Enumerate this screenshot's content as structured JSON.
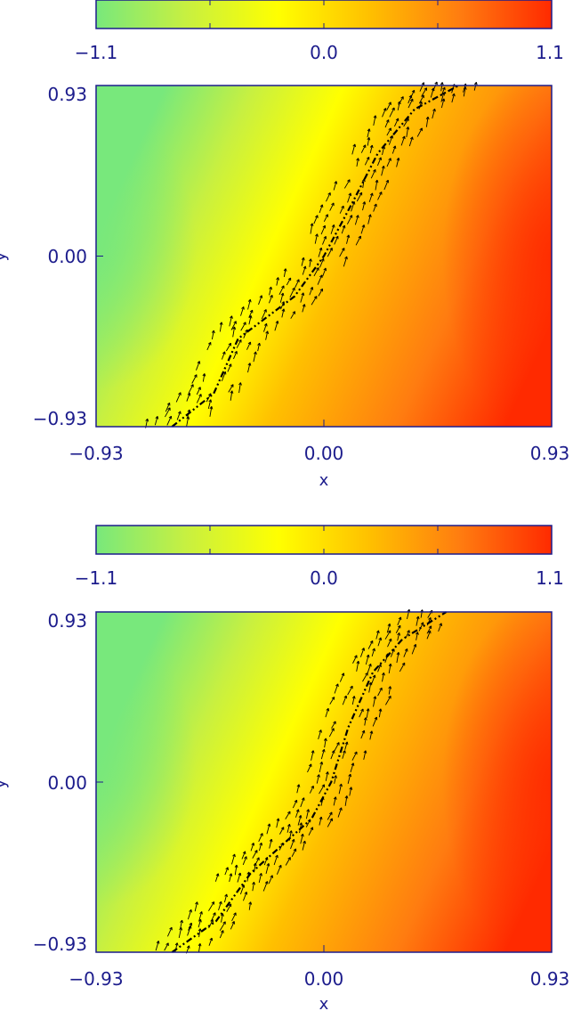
{
  "chart_data": [
    {
      "type": "heatmap",
      "title": "",
      "xlabel": "x",
      "ylabel": "y",
      "xlim": [
        -0.93,
        0.93
      ],
      "ylim": [
        -0.93,
        0.93
      ],
      "x_ticks": [
        "-0.93",
        "0.00",
        "0.93"
      ],
      "y_ticks": [
        "-0.93",
        "0.00",
        "0.93"
      ],
      "colorbar": {
        "range": [
          -1.1,
          1.1
        ],
        "ticks": [
          "-1.1",
          "0.0",
          "1.1"
        ],
        "placement": "top",
        "colormap": [
          "#78e87c",
          "#c8f040",
          "#ffff00",
          "#ffc000",
          "#ff7c10",
          "#ff2a00"
        ]
      },
      "field_peaks": {
        "min": -1.1,
        "min_at": [
          -0.93,
          0.05
        ],
        "max": 1.1,
        "max_at": [
          0.93,
          0.0
        ]
      },
      "interface_line": {
        "style": "dash-dot",
        "color": "#000000",
        "points": [
          [
            -0.62,
            -0.93
          ],
          [
            -0.45,
            -0.75
          ],
          [
            -0.35,
            -0.45
          ],
          [
            -0.12,
            -0.22
          ],
          [
            0.0,
            0.0
          ],
          [
            0.12,
            0.3
          ],
          [
            0.22,
            0.56
          ],
          [
            0.37,
            0.8
          ],
          [
            0.55,
            0.93
          ]
        ]
      },
      "vector_arrows": {
        "color": "#000000",
        "along": "interface_line",
        "direction": "up-right"
      },
      "grid": false,
      "legend": "none"
    },
    {
      "type": "heatmap",
      "title": "",
      "xlabel": "x",
      "ylabel": "y",
      "xlim": [
        -0.93,
        0.93
      ],
      "ylim": [
        -0.93,
        0.93
      ],
      "x_ticks": [
        "-0.93",
        "0.00",
        "0.93"
      ],
      "y_ticks": [
        "-0.93",
        "0.00",
        "0.93"
      ],
      "colorbar": {
        "range": [
          -1.1,
          1.1
        ],
        "ticks": [
          "-1.1",
          "0.0",
          "1.1"
        ],
        "placement": "top",
        "colormap": [
          "#78e87c",
          "#c8f040",
          "#ffff00",
          "#ffc000",
          "#ff7c10",
          "#ff2a00"
        ]
      },
      "field_peaks": {
        "min": -1.1,
        "min_at": [
          -0.93,
          0.1
        ],
        "max": 1.1,
        "max_at": [
          0.93,
          0.0
        ]
      },
      "interface_line": {
        "style": "dash-dot",
        "color": "#000000",
        "points": [
          [
            -0.62,
            -0.93
          ],
          [
            -0.44,
            -0.76
          ],
          [
            -0.3,
            -0.5
          ],
          [
            -0.05,
            -0.2
          ],
          [
            0.03,
            0.0
          ],
          [
            0.1,
            0.3
          ],
          [
            0.2,
            0.6
          ],
          [
            0.32,
            0.78
          ],
          [
            0.5,
            0.93
          ]
        ]
      },
      "vector_arrows": {
        "color": "#000000",
        "along": "interface_line",
        "direction": "up-right"
      },
      "grid": false,
      "legend": "none"
    }
  ]
}
